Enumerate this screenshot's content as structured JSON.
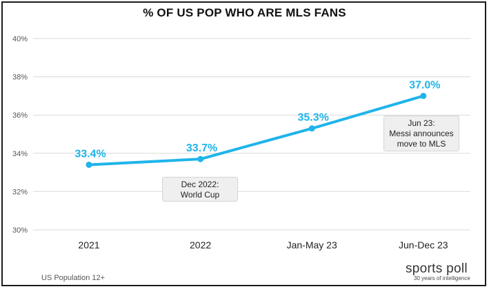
{
  "title": "% OF US POP WHO ARE MLS FANS",
  "footnote": "US Population 12+",
  "brand": {
    "name": "sports poll",
    "tagline": "30 years of intelligence"
  },
  "colors": {
    "line": "#1fb4ea",
    "label": "#1fb4ea",
    "grid": "#d9d9d9"
  },
  "annotations": [
    {
      "lines": [
        "Dec 2022:",
        "World Cup"
      ]
    },
    {
      "lines": [
        "Jun 23:",
        "Messi announces",
        "move to MLS"
      ]
    }
  ],
  "chart_data": {
    "type": "line",
    "title": "% OF US POP WHO ARE MLS FANS",
    "categories": [
      "2021",
      "2022",
      "Jan-May 23",
      "Jun-Dec 23"
    ],
    "values": [
      33.4,
      33.7,
      35.3,
      37.0
    ],
    "data_labels": [
      "33.4%",
      "33.7%",
      "35.3%",
      "37.0%"
    ],
    "y_ticks": [
      "30%",
      "32%",
      "34%",
      "36%",
      "38%",
      "40%"
    ],
    "ylim": [
      30,
      40
    ],
    "grid": true,
    "legend": "none",
    "xlabel": "",
    "ylabel": ""
  }
}
